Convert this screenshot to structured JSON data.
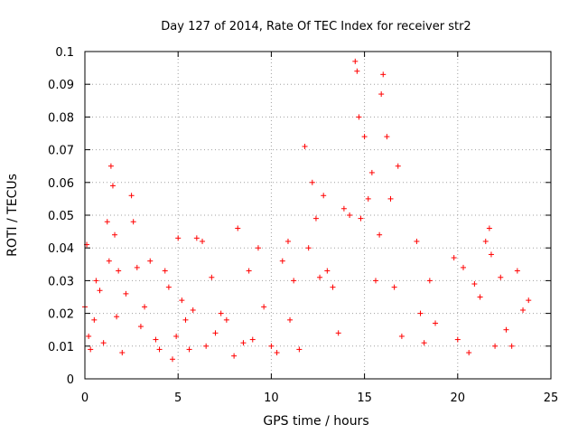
{
  "chart_data": {
    "type": "scatter",
    "title": "Day 127 of 2014, Rate Of TEC Index for receiver str2",
    "xlabel": "GPS time / hours",
    "ylabel": "ROTI / TECUs",
    "xlim": [
      0,
      25
    ],
    "ylim": [
      0,
      0.1
    ],
    "xticks": [
      "0",
      "5",
      "10",
      "15",
      "20",
      "25"
    ],
    "yticks": [
      "0",
      "0.01",
      "0.02",
      "0.03",
      "0.04",
      "0.05",
      "0.06",
      "0.07",
      "0.08",
      "0.09",
      "0.1"
    ],
    "grid": true,
    "marker": "+",
    "color": "#ff0000",
    "series": [
      {
        "x": [
          0.0,
          0.1,
          0.2,
          0.3,
          0.5,
          0.6,
          0.8,
          1.0,
          1.2,
          1.3,
          1.4,
          1.5,
          1.6,
          1.7,
          1.8,
          2.0,
          2.2,
          2.5,
          2.6,
          2.8,
          3.0,
          3.2,
          3.5,
          3.8,
          4.0,
          4.3,
          4.5,
          4.7,
          4.9,
          5.0,
          5.2,
          5.4,
          5.6,
          5.8,
          6.0,
          6.3,
          6.5,
          6.8,
          7.0,
          7.3,
          7.6,
          8.0,
          8.2,
          8.5,
          8.8,
          9.0,
          9.3,
          9.6,
          10.0,
          10.3,
          10.6,
          10.9,
          11.0,
          11.2,
          11.5,
          11.8,
          12.0,
          12.2,
          12.4,
          12.6,
          12.8,
          13.0,
          13.3,
          13.6,
          13.9,
          14.2,
          14.5,
          14.6,
          14.7,
          14.8,
          15.0,
          15.2,
          15.4,
          15.6,
          15.8,
          15.9,
          16.0,
          16.2,
          16.4,
          16.6,
          16.8,
          17.0,
          17.8,
          18.0,
          18.2,
          18.5,
          18.8,
          19.8,
          20.0,
          20.3,
          20.6,
          20.9,
          21.2,
          21.5,
          21.7,
          21.8,
          22.0,
          22.3,
          22.6,
          22.9,
          23.2,
          23.5,
          23.8
        ],
        "y": [
          0.022,
          0.041,
          0.013,
          0.009,
          0.018,
          0.03,
          0.027,
          0.011,
          0.048,
          0.036,
          0.065,
          0.059,
          0.044,
          0.019,
          0.033,
          0.008,
          0.026,
          0.056,
          0.048,
          0.034,
          0.016,
          0.022,
          0.036,
          0.012,
          0.009,
          0.033,
          0.028,
          0.006,
          0.013,
          0.043,
          0.024,
          0.018,
          0.009,
          0.021,
          0.043,
          0.042,
          0.01,
          0.031,
          0.014,
          0.02,
          0.018,
          0.007,
          0.046,
          0.011,
          0.033,
          0.012,
          0.04,
          0.022,
          0.01,
          0.008,
          0.036,
          0.042,
          0.018,
          0.03,
          0.009,
          0.071,
          0.04,
          0.06,
          0.049,
          0.031,
          0.056,
          0.033,
          0.028,
          0.014,
          0.052,
          0.05,
          0.097,
          0.094,
          0.08,
          0.049,
          0.074,
          0.055,
          0.063,
          0.03,
          0.044,
          0.087,
          0.093,
          0.074,
          0.055,
          0.028,
          0.065,
          0.013,
          0.042,
          0.02,
          0.011,
          0.03,
          0.017,
          0.037,
          0.012,
          0.034,
          0.008,
          0.029,
          0.025,
          0.042,
          0.046,
          0.038,
          0.01,
          0.031,
          0.015,
          0.01,
          0.033,
          0.021,
          0.024
        ]
      }
    ]
  }
}
